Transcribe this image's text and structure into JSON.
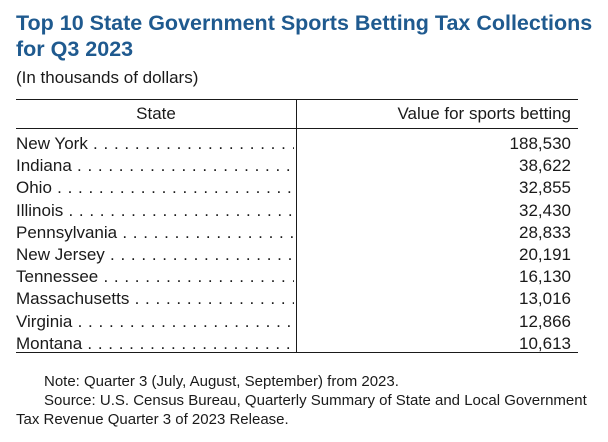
{
  "title": "Top 10 State Government Sports Betting Tax Collections for Q3 2023",
  "subtitle": "(In thousands of dollars)",
  "columns": {
    "state": "State",
    "value": "Value for sports betting"
  },
  "rows": [
    {
      "state": "New York",
      "value": "188,530"
    },
    {
      "state": "Indiana",
      "value": "38,622"
    },
    {
      "state": "Ohio",
      "value": "32,855"
    },
    {
      "state": "Illinois",
      "value": "32,430"
    },
    {
      "state": "Pennsylvania",
      "value": "28,833"
    },
    {
      "state": "New Jersey",
      "value": "20,191"
    },
    {
      "state": "Tennessee",
      "value": "16,130"
    },
    {
      "state": "Massachusetts",
      "value": "13,016"
    },
    {
      "state": "Virginia",
      "value": "12,866"
    },
    {
      "state": "Montana",
      "value": "10,613"
    }
  ],
  "notes": {
    "note": "Note: Quarter 3 (July, August, September) from 2023.",
    "source": "Source: U.S. Census Bureau, Quarterly Summary of State and Local Government Tax Revenue Quarter 3 of 2023 Release."
  }
}
